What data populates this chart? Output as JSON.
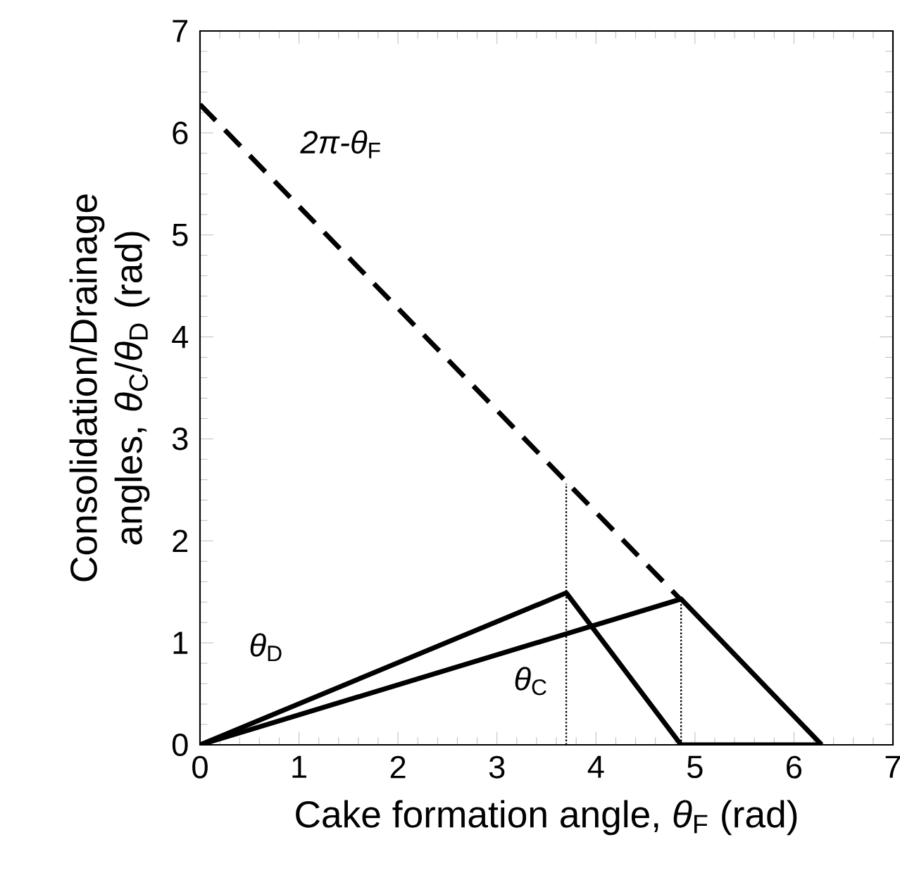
{
  "chart_data": {
    "type": "line",
    "xlabel": "Cake formation angle, *θ*$_{F}$ (rad)",
    "ylabel": "Consolidation/Drainage angles, *θ*$_{C}$/*θ*$_{D}$ (rad)",
    "xlim": [
      0,
      7
    ],
    "ylim": [
      0,
      7
    ],
    "xticks": [
      0,
      1,
      2,
      3,
      4,
      5,
      6,
      7
    ],
    "yticks": [
      0,
      1,
      2,
      3,
      4,
      5,
      6,
      7
    ],
    "grid": false,
    "legend": false,
    "marker": "none",
    "series": [
      {
        "name": "*θ*$_{D}$",
        "color": "#000000",
        "line_style": "solid",
        "x": [
          0,
          3.7,
          4.86,
          6.28
        ],
        "values": [
          0,
          1.49,
          0,
          0
        ]
      },
      {
        "name": "*θ*$_{C}$",
        "color": "#000000",
        "line_style": "solid",
        "x": [
          0,
          4.86,
          6.28
        ],
        "values": [
          0,
          1.43,
          0
        ]
      },
      {
        "name": "*2π-θ*$_{F}$",
        "color": "#000000",
        "line_style": "dashed",
        "x": [
          0,
          4.86
        ],
        "values": [
          6.28,
          1.42
        ]
      },
      {
        "color": "#000000",
        "line_style": "dotted",
        "x": [
          3.7,
          3.7
        ],
        "values": [
          0,
          2.56
        ]
      },
      {
        "color": "#000000",
        "line_style": "dotted",
        "x": [
          4.86,
          4.86
        ],
        "values": [
          0,
          1.43
        ]
      }
    ]
  }
}
